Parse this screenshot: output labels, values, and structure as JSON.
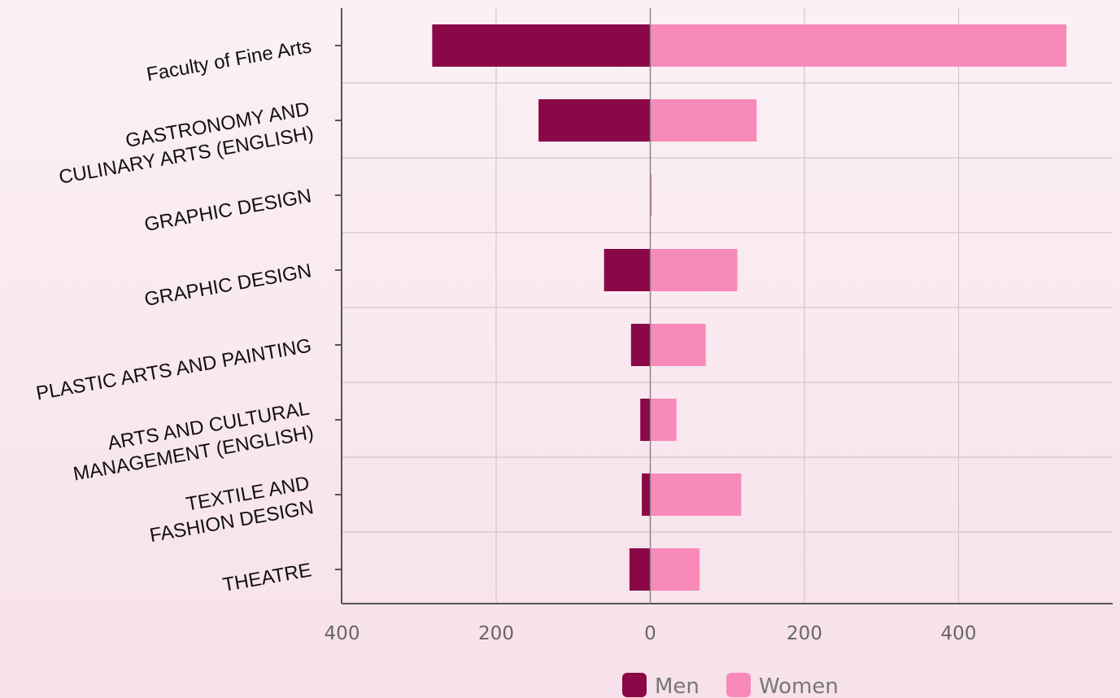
{
  "chart_data": {
    "type": "bar",
    "orientation": "horizontal-diverging",
    "categories": [
      [
        "Faculty of Fine Arts"
      ],
      [
        "GASTRONOMY AND",
        "CULINARY ARTS (ENGLISH)"
      ],
      [
        "GRAPHIC DESIGN"
      ],
      [
        "GRAPHIC DESIGN"
      ],
      [
        "PLASTIC ARTS AND PAINTING"
      ],
      [
        "ARTS AND CULTURAL",
        "MANAGEMENT (ENGLISH)"
      ],
      [
        "TEXTILE AND",
        "FASHION DESIGN"
      ],
      [
        "THEATRE"
      ]
    ],
    "series": [
      {
        "name": "Men",
        "color": "#8b0848",
        "values": [
          283,
          145,
          0,
          60,
          25,
          13,
          11,
          27
        ]
      },
      {
        "name": "Women",
        "color": "#f78ab9",
        "values": [
          540,
          138,
          2,
          113,
          72,
          34,
          118,
          64
        ]
      }
    ],
    "xlim": [
      -400,
      600
    ],
    "x_ticks": [
      -400,
      -200,
      0,
      200,
      400
    ],
    "x_tick_labels": [
      "400",
      "200",
      "0",
      "200",
      "400"
    ],
    "grid": true,
    "legend_position": "bottom-center"
  },
  "colors": {
    "axis": "#555555",
    "grid": "#d4c4cc"
  }
}
